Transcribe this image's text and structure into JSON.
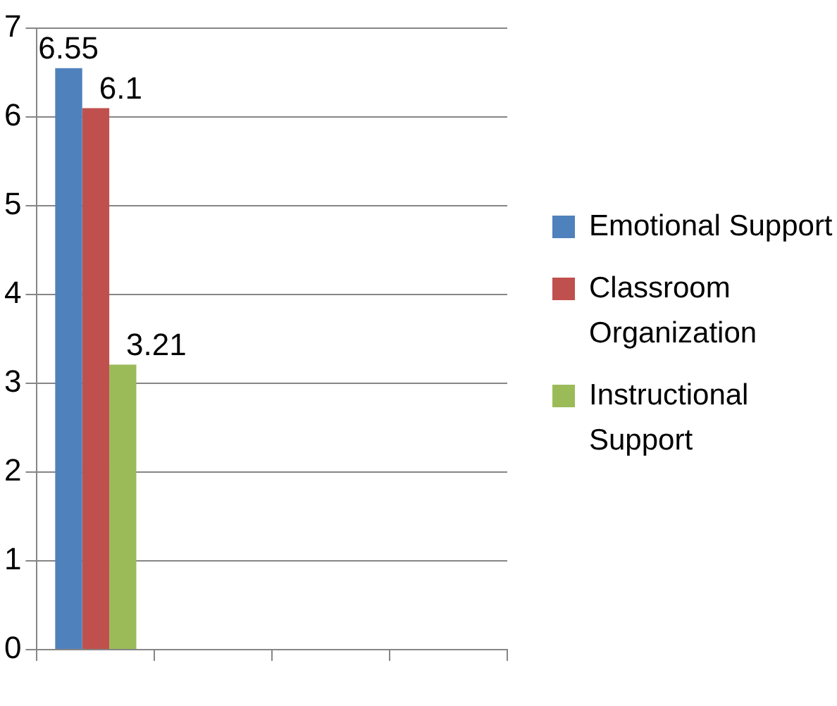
{
  "chart_data": {
    "type": "bar",
    "categories": [
      null,
      null,
      null,
      null
    ],
    "series": [
      {
        "name": "Emotional Support",
        "color": "#4f81bd",
        "values": [
          6.55,
          null,
          null,
          null
        ]
      },
      {
        "name": "Classroom Organization",
        "color": "#c0504d",
        "values": [
          6.1,
          null,
          null,
          null
        ]
      },
      {
        "name": "Instructional Support",
        "color": "#9bbb59",
        "values": [
          3.21,
          null,
          null,
          null
        ]
      }
    ],
    "ylim": [
      0,
      7
    ],
    "yticks": [
      0,
      1,
      2,
      3,
      4,
      5,
      6,
      7
    ],
    "grid": "y",
    "legend": "right",
    "data_labels": true
  }
}
